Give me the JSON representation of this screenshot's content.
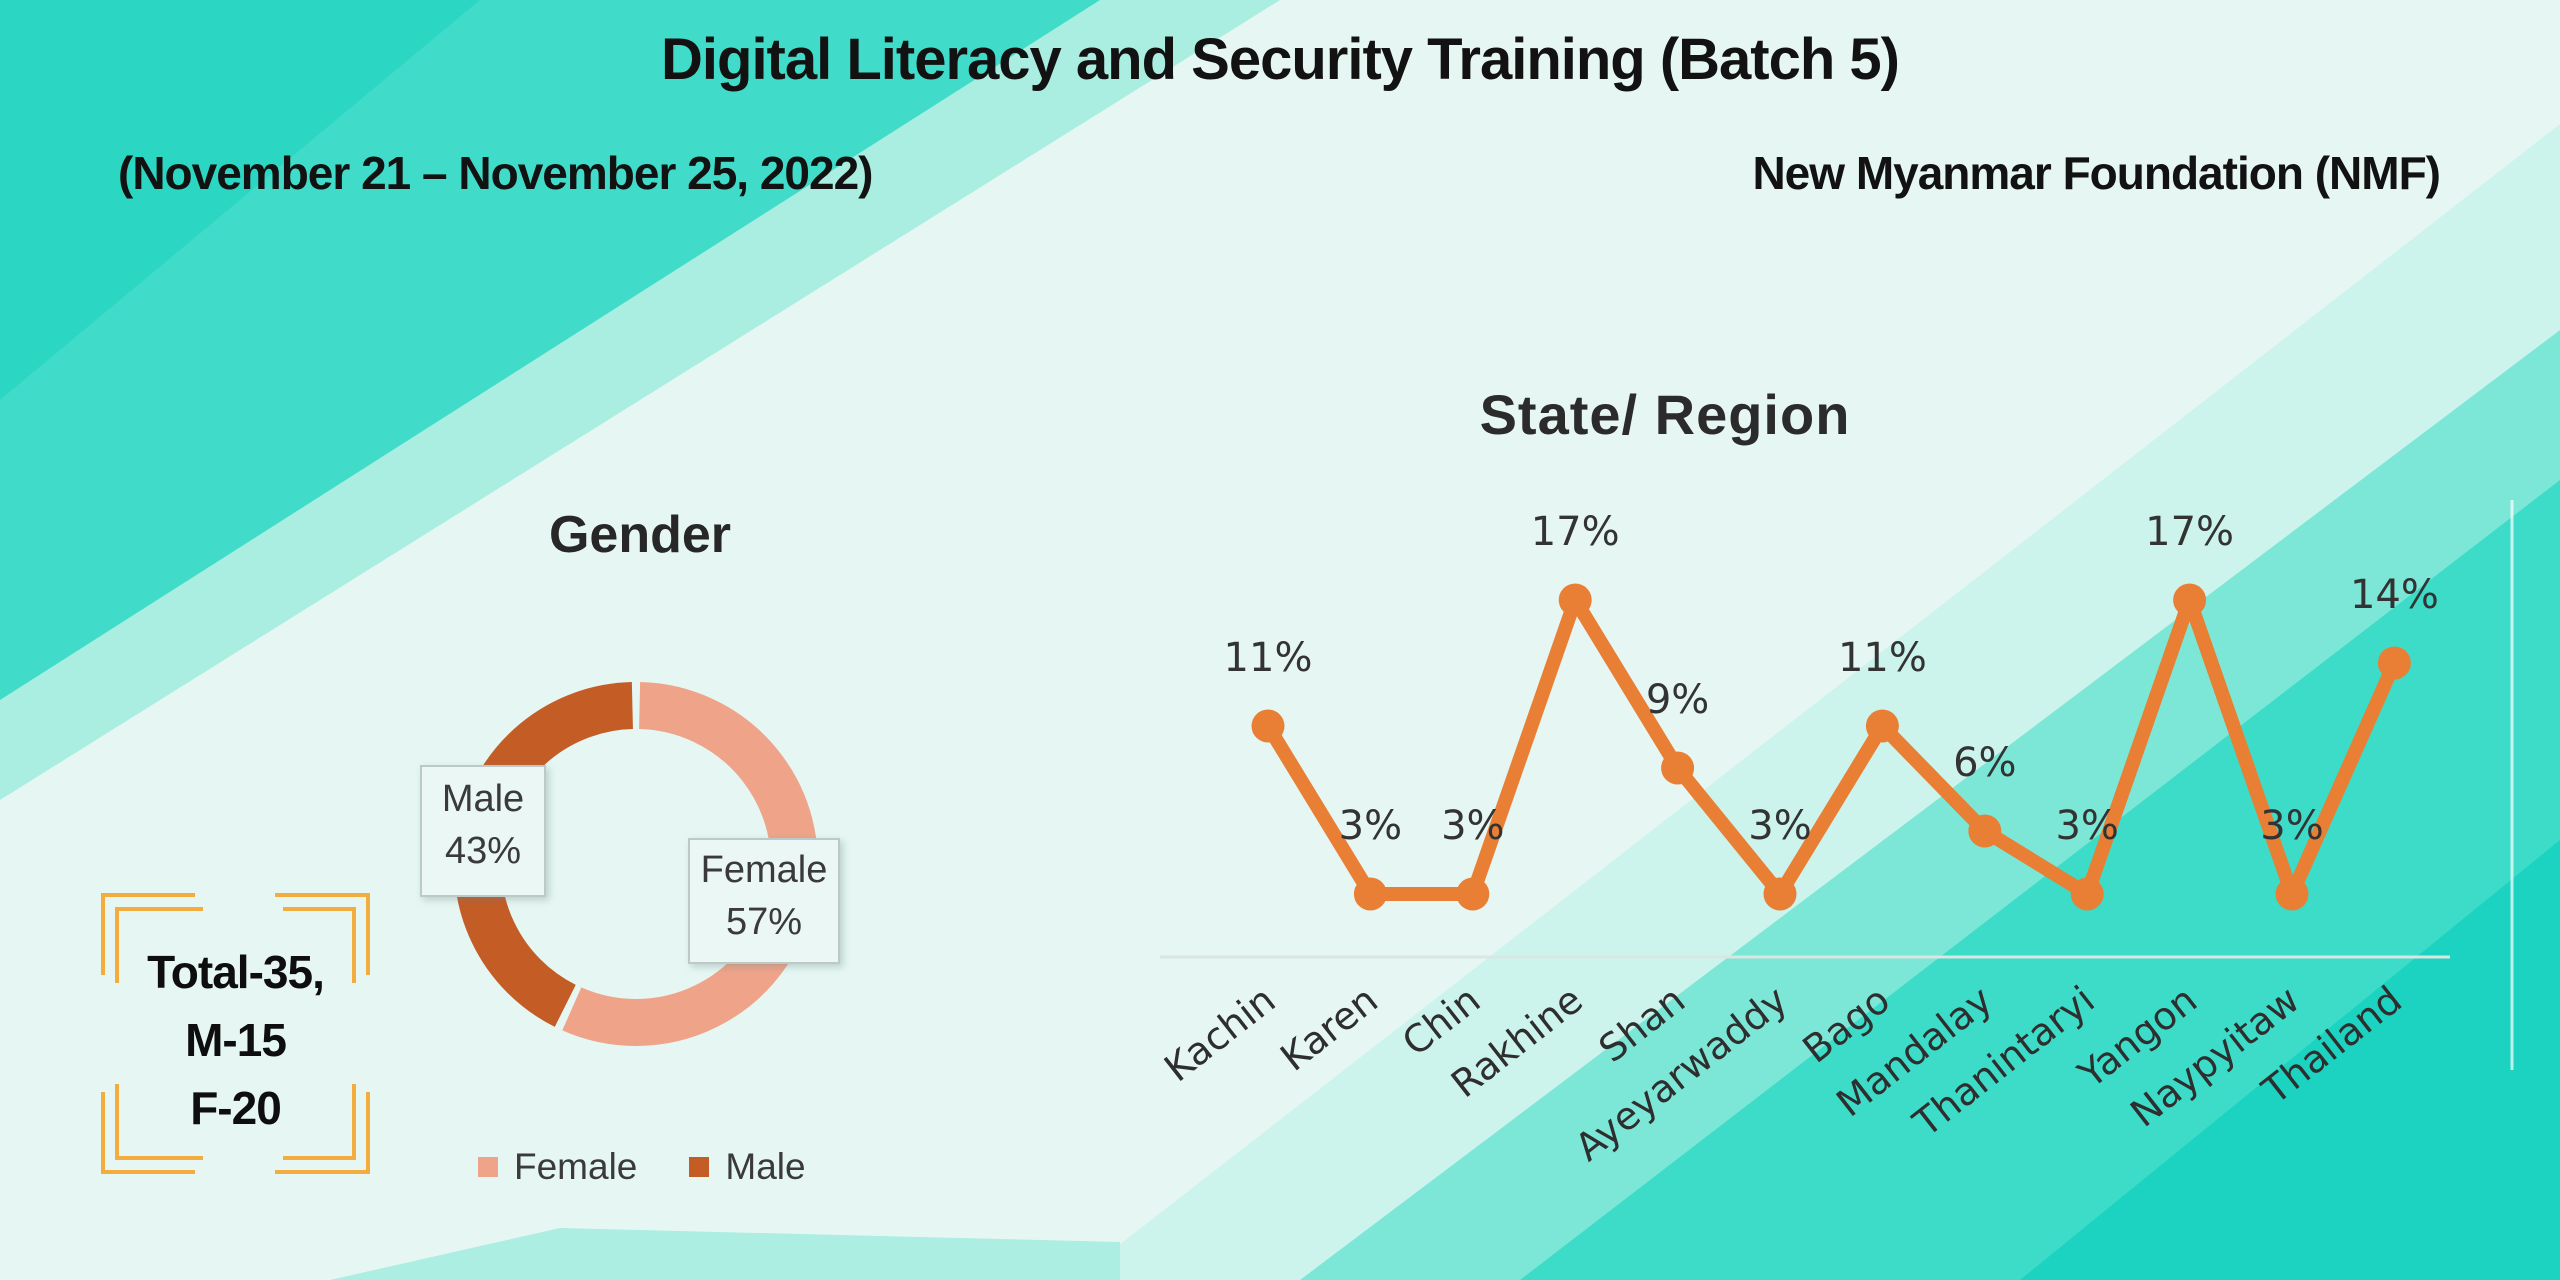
{
  "header": {
    "title": "Digital Literacy and Security Training (Batch 5)",
    "date_range": "(November 21 – November 25, 2022)",
    "organization": "New Myanmar Foundation (NMF)"
  },
  "summary_box": {
    "line1": "Total-35,",
    "line2": "M-15",
    "line3": "F-20",
    "bracket_color": "#f3ad3e"
  },
  "chart_data": [
    {
      "type": "pie",
      "variant": "donut",
      "title": "Gender",
      "slices": [
        {
          "label": "Female",
          "value": 57,
          "percent_text": "57%",
          "color": "#efa48a"
        },
        {
          "label": "Male",
          "value": 43,
          "percent_text": "43%",
          "color": "#c45c26"
        }
      ],
      "legend_position": "bottom",
      "grid": false
    },
    {
      "type": "line",
      "title": "State/ Region",
      "categories": [
        "Kachin",
        "Karen",
        "Chin",
        "Rakhine",
        "Shan",
        "Ayeyarwaddy",
        "Bago",
        "Mandalay",
        "Thanintaryi",
        "Yangon",
        "Naypyitaw",
        "Thailand"
      ],
      "values": [
        11,
        3,
        3,
        17,
        9,
        3,
        11,
        6,
        3,
        17,
        3,
        14
      ],
      "value_labels": [
        "11%",
        "3%",
        "3%",
        "17%",
        "9%",
        "3%",
        "11%",
        "6%",
        "3%",
        "17%",
        "3%",
        "14%"
      ],
      "line_color": "#e87f35",
      "label_color": "#333333",
      "category_color": "#2e2e2e",
      "axis_line_color": "#d9e6e2",
      "xlabel": "",
      "ylabel": "",
      "ylim": [
        0,
        20
      ],
      "grid": false,
      "legend_position": "none"
    }
  ],
  "colors": {
    "background_base": "#e6f7f3",
    "teal_bright": "#40dcc9",
    "teal_deep": "#1bd3c0",
    "text_dark": "#121212"
  }
}
